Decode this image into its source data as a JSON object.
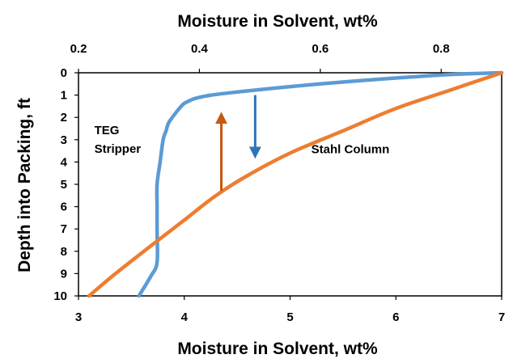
{
  "chart_data": {
    "type": "line",
    "title": "",
    "top_axis": {
      "label": "Moisture in Solvent, wt%",
      "range": [
        0.2,
        0.9
      ],
      "ticks": [
        0.2,
        0.4,
        0.6,
        0.8
      ],
      "tick_labels": [
        "0.2",
        "0.4",
        "0.6",
        "0.8"
      ]
    },
    "bottom_axis": {
      "label": "Moisture in Solvent, wt%",
      "range": [
        3,
        7
      ],
      "ticks": [
        3,
        4,
        5,
        6,
        7
      ],
      "tick_labels": [
        "3",
        "4",
        "5",
        "6",
        "7"
      ]
    },
    "y_axis": {
      "label": "Depth into Packing, ft",
      "range": [
        0,
        10
      ],
      "inverted": true,
      "ticks": [
        0,
        1,
        2,
        3,
        4,
        5,
        6,
        7,
        8,
        9,
        10
      ],
      "tick_labels": [
        "0",
        "1",
        "2",
        "3",
        "4",
        "5",
        "6",
        "7",
        "8",
        "9",
        "10"
      ]
    },
    "grid": false,
    "series": [
      {
        "label_lines": [
          "TEG",
          "Stripper"
        ],
        "axis": "top",
        "color": "#5B9BD5",
        "x": [
          0.9,
          0.8,
          0.6,
          0.45,
          0.4,
          0.38,
          0.37,
          0.35,
          0.345,
          0.34,
          0.335,
          0.33,
          0.33,
          0.33,
          0.33,
          0.32,
          0.3
        ],
        "y": [
          0.0,
          0.1,
          0.5,
          0.9,
          1.1,
          1.3,
          1.5,
          2.2,
          2.6,
          3.0,
          4.0,
          5.0,
          6.0,
          7.0,
          8.5,
          9.1,
          10.0
        ]
      },
      {
        "label_lines": [
          "Stahl Column"
        ],
        "axis": "bottom",
        "color": "#ED7D31",
        "x": [
          3.1,
          3.35,
          3.7,
          4.0,
          4.3,
          4.6,
          5.0,
          5.5,
          6.0,
          6.5,
          7.0
        ],
        "y": [
          10.0,
          9.0,
          7.7,
          6.6,
          5.5,
          4.6,
          3.6,
          2.6,
          1.6,
          0.8,
          0.0
        ]
      }
    ],
    "arrows": [
      {
        "color": "#2E75B6",
        "axis": "bottom",
        "x": 4.67,
        "from_y": 1.0,
        "to_y": 3.6
      },
      {
        "color": "#C55A11",
        "axis": "bottom",
        "x": 4.35,
        "from_y": 5.3,
        "to_y": 2.0
      }
    ],
    "label_positions": [
      {
        "axis": "bottom",
        "x": 3.15,
        "y": 2.75
      },
      {
        "axis": "bottom",
        "x": 5.2,
        "y": 3.6
      }
    ]
  }
}
